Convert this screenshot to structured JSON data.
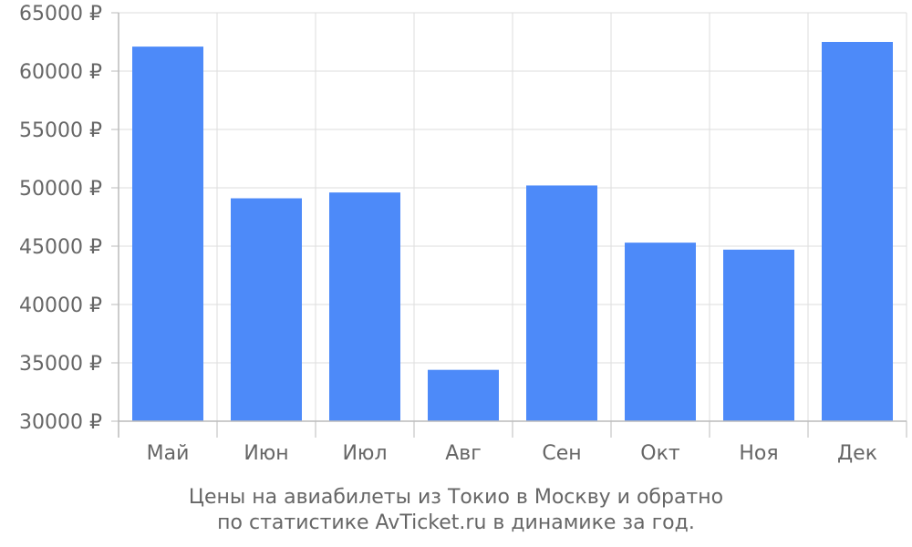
{
  "chart_data": {
    "type": "bar",
    "categories": [
      "Май",
      "Июн",
      "Июл",
      "Авг",
      "Сен",
      "Окт",
      "Ноя",
      "Дек"
    ],
    "values": [
      62100,
      49100,
      49600,
      34400,
      50200,
      45300,
      44700,
      62500
    ],
    "ylim": [
      30000,
      65000
    ],
    "yticks": [
      30000,
      35000,
      40000,
      45000,
      50000,
      55000,
      60000,
      65000
    ],
    "ytick_labels": [
      "30000 ₽",
      "35000 ₽",
      "40000 ₽",
      "45000 ₽",
      "50000 ₽",
      "55000 ₽",
      "60000 ₽",
      "65000 ₽"
    ],
    "grid": true,
    "bar_color": "#4d8af9",
    "caption_line1": "Цены на авиабилеты из Токио в Москву и обратно",
    "caption_line2": "по статистике AvTicket.ru в динамике за год."
  }
}
